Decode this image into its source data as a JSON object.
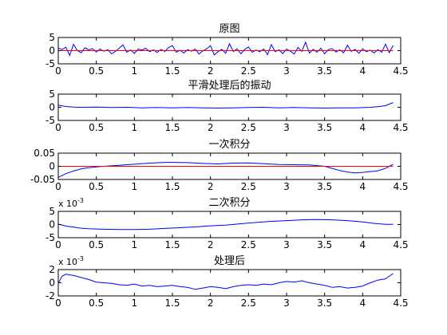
{
  "chart_data": [
    {
      "type": "line",
      "title": "原图",
      "xlabel": "",
      "ylabel": "",
      "xlim": [
        0,
        4.5
      ],
      "ylim": [
        -5,
        5
      ],
      "xticks": [
        "0",
        "0.5",
        "1",
        "1.5",
        "2",
        "2.5",
        "3",
        "3.5",
        "4",
        "4.5"
      ],
      "yticks": [
        "5",
        "0",
        "-5"
      ],
      "ytick_values": [
        5,
        0,
        -5
      ],
      "exponent_label": "",
      "grid": false,
      "series": [
        {
          "color": "#0000ff",
          "points": [
            [
              0,
              1.0
            ],
            [
              0.05,
              0.4
            ],
            [
              0.1,
              1.3
            ],
            [
              0.15,
              -1.8
            ],
            [
              0.2,
              2.4
            ],
            [
              0.25,
              0.1
            ],
            [
              0.3,
              -0.8
            ],
            [
              0.35,
              1.1
            ],
            [
              0.4,
              0.3
            ],
            [
              0.45,
              0.8
            ],
            [
              0.5,
              -0.5
            ],
            [
              0.55,
              0.6
            ],
            [
              0.6,
              -0.2
            ],
            [
              0.65,
              0.4
            ],
            [
              0.7,
              -1.2
            ],
            [
              0.75,
              -0.3
            ],
            [
              0.8,
              0.9
            ],
            [
              0.85,
              2.2
            ],
            [
              0.9,
              -0.6
            ],
            [
              0.95,
              0.3
            ],
            [
              1.0,
              -1.1
            ],
            [
              1.05,
              0.6
            ],
            [
              1.1,
              0.2
            ],
            [
              1.15,
              0.9
            ],
            [
              1.2,
              -0.4
            ],
            [
              1.25,
              0.3
            ],
            [
              1.3,
              -0.7
            ],
            [
              1.35,
              0.5
            ],
            [
              1.4,
              -0.3
            ],
            [
              1.45,
              1.2
            ],
            [
              1.5,
              1.9
            ],
            [
              1.55,
              -0.6
            ],
            [
              1.6,
              0.2
            ],
            [
              1.65,
              -0.9
            ],
            [
              1.7,
              0.4
            ],
            [
              1.75,
              -0.2
            ],
            [
              1.8,
              0.6
            ],
            [
              1.85,
              -1.3
            ],
            [
              1.9,
              -0.1
            ],
            [
              1.95,
              0.7
            ],
            [
              2.0,
              1.9
            ],
            [
              2.05,
              -1.6
            ],
            [
              2.1,
              -0.4
            ],
            [
              2.15,
              0.5
            ],
            [
              2.2,
              -1.0
            ],
            [
              2.25,
              2.6
            ],
            [
              2.3,
              -0.3
            ],
            [
              2.35,
              0.7
            ],
            [
              2.4,
              -1.2
            ],
            [
              2.45,
              0.5
            ],
            [
              2.5,
              1.4
            ],
            [
              2.55,
              -0.6
            ],
            [
              2.6,
              0.2
            ],
            [
              2.65,
              -0.4
            ],
            [
              2.7,
              0.6
            ],
            [
              2.75,
              -1.5
            ],
            [
              2.8,
              2.3
            ],
            [
              2.85,
              -0.4
            ],
            [
              2.9,
              0.3
            ],
            [
              2.95,
              -1.1
            ],
            [
              3.0,
              0.6
            ],
            [
              3.05,
              -0.2
            ],
            [
              3.1,
              -1.3
            ],
            [
              3.15,
              1.2
            ],
            [
              3.2,
              -0.3
            ],
            [
              3.25,
              3.2
            ],
            [
              3.3,
              -0.9
            ],
            [
              3.35,
              0.5
            ],
            [
              3.4,
              -0.6
            ],
            [
              3.45,
              0.9
            ],
            [
              3.5,
              -1.2
            ],
            [
              3.55,
              0.4
            ],
            [
              3.6,
              0.8
            ],
            [
              3.65,
              -0.5
            ],
            [
              3.7,
              0.3
            ],
            [
              3.75,
              -0.8
            ],
            [
              3.8,
              2.1
            ],
            [
              3.85,
              -0.3
            ],
            [
              3.9,
              0.5
            ],
            [
              3.95,
              -1.0
            ],
            [
              4.0,
              0.7
            ],
            [
              4.05,
              -0.4
            ],
            [
              4.1,
              0.2
            ],
            [
              4.15,
              -0.9
            ],
            [
              4.2,
              0.4
            ],
            [
              4.25,
              -0.6
            ],
            [
              4.3,
              2.5
            ],
            [
              4.35,
              -0.8
            ],
            [
              4.4,
              2.0
            ]
          ]
        },
        {
          "color": "#ff0000",
          "points": [
            [
              0,
              0
            ],
            [
              4.4,
              0
            ]
          ]
        }
      ]
    },
    {
      "type": "line",
      "title": "平滑处理后的振动",
      "xlabel": "",
      "ylabel": "",
      "xlim": [
        0,
        4.5
      ],
      "ylim": [
        -5,
        5
      ],
      "xticks": [
        "0",
        "0.5",
        "1",
        "1.5",
        "2",
        "2.5",
        "3",
        "3.5",
        "4",
        "4.5"
      ],
      "yticks": [
        "5",
        "0",
        "-5"
      ],
      "ytick_values": [
        5,
        0,
        -5
      ],
      "exponent_label": "",
      "grid": false,
      "series": [
        {
          "color": "#0000ff",
          "points": [
            [
              0,
              0.8
            ],
            [
              0.1,
              0.3
            ],
            [
              0.2,
              0.1
            ],
            [
              0.3,
              0.0
            ],
            [
              0.5,
              0.1
            ],
            [
              0.7,
              -0.1
            ],
            [
              0.9,
              0.0
            ],
            [
              1.1,
              -0.2
            ],
            [
              1.3,
              -0.1
            ],
            [
              1.5,
              -0.2
            ],
            [
              1.7,
              -0.1
            ],
            [
              1.9,
              -0.2
            ],
            [
              2.1,
              -0.3
            ],
            [
              2.3,
              -0.2
            ],
            [
              2.5,
              -0.1
            ],
            [
              2.7,
              0.0
            ],
            [
              2.9,
              -0.2
            ],
            [
              3.1,
              -0.1
            ],
            [
              3.3,
              -0.2
            ],
            [
              3.5,
              -0.3
            ],
            [
              3.7,
              -0.2
            ],
            [
              3.9,
              -0.2
            ],
            [
              4.1,
              0.0
            ],
            [
              4.2,
              0.2
            ],
            [
              4.3,
              0.6
            ],
            [
              4.4,
              1.8
            ]
          ]
        }
      ]
    },
    {
      "type": "line",
      "title": "一次积分",
      "xlabel": "",
      "ylabel": "",
      "xlim": [
        0,
        4.5
      ],
      "ylim": [
        -0.05,
        0.05
      ],
      "xticks": [
        "0",
        "0.5",
        "1",
        "1.5",
        "2",
        "2.5",
        "3",
        "3.5",
        "4",
        "4.5"
      ],
      "yticks": [
        "0.05",
        "0",
        "-0.05"
      ],
      "ytick_values": [
        0.05,
        0,
        -0.05
      ],
      "exponent_label": "",
      "grid": false,
      "series": [
        {
          "color": "#0000ff",
          "points": [
            [
              0,
              -0.042
            ],
            [
              0.1,
              -0.028
            ],
            [
              0.2,
              -0.018
            ],
            [
              0.3,
              -0.01
            ],
            [
              0.4,
              -0.005
            ],
            [
              0.5,
              -0.002
            ],
            [
              0.6,
              0.0
            ],
            [
              0.8,
              0.004
            ],
            [
              1.0,
              0.008
            ],
            [
              1.2,
              0.012
            ],
            [
              1.4,
              0.015
            ],
            [
              1.5,
              0.015
            ],
            [
              1.7,
              0.014
            ],
            [
              1.9,
              0.011
            ],
            [
              2.1,
              0.009
            ],
            [
              2.3,
              0.012
            ],
            [
              2.5,
              0.013
            ],
            [
              2.7,
              0.01
            ],
            [
              2.9,
              0.007
            ],
            [
              3.1,
              0.006
            ],
            [
              3.3,
              0.005
            ],
            [
              3.5,
              0.0
            ],
            [
              3.6,
              -0.008
            ],
            [
              3.7,
              -0.016
            ],
            [
              3.8,
              -0.022
            ],
            [
              3.9,
              -0.025
            ],
            [
              4.0,
              -0.023
            ],
            [
              4.1,
              -0.02
            ],
            [
              4.2,
              -0.017
            ],
            [
              4.3,
              -0.008
            ],
            [
              4.4,
              0.008
            ]
          ]
        },
        {
          "color": "#ff0000",
          "points": [
            [
              0,
              0
            ],
            [
              4.4,
              0
            ]
          ]
        }
      ]
    },
    {
      "type": "line",
      "title": "二次积分",
      "xlabel": "",
      "ylabel": "",
      "xlim": [
        0,
        4.5
      ],
      "ylim": [
        -5,
        5
      ],
      "xticks": [
        "0",
        "0.5",
        "1",
        "1.5",
        "2",
        "2.5",
        "3",
        "3.5",
        "4",
        "4.5"
      ],
      "yticks": [
        "5",
        "0",
        "-5"
      ],
      "ytick_values": [
        5,
        0,
        -5
      ],
      "exponent_label": "x 10-3",
      "exponent_base": "x 10",
      "exponent_power": "-3",
      "grid": false,
      "series": [
        {
          "color": "#0000ff",
          "points": [
            [
              0,
              0.2
            ],
            [
              0.1,
              -0.6
            ],
            [
              0.2,
              -1.0
            ],
            [
              0.3,
              -1.4
            ],
            [
              0.4,
              -1.6
            ],
            [
              0.6,
              -1.8
            ],
            [
              0.8,
              -1.9
            ],
            [
              1.0,
              -1.9
            ],
            [
              1.2,
              -1.8
            ],
            [
              1.4,
              -1.5
            ],
            [
              1.6,
              -1.2
            ],
            [
              1.8,
              -0.9
            ],
            [
              2.0,
              -0.5
            ],
            [
              2.2,
              -0.2
            ],
            [
              2.4,
              0.3
            ],
            [
              2.6,
              0.8
            ],
            [
              2.8,
              1.2
            ],
            [
              3.0,
              1.5
            ],
            [
              3.2,
              1.8
            ],
            [
              3.4,
              1.9
            ],
            [
              3.6,
              1.8
            ],
            [
              3.8,
              1.5
            ],
            [
              4.0,
              1.0
            ],
            [
              4.1,
              0.6
            ],
            [
              4.2,
              0.3
            ],
            [
              4.3,
              0.1
            ],
            [
              4.4,
              0.1
            ]
          ]
        }
      ]
    },
    {
      "type": "line",
      "title": "处理后",
      "xlabel": "",
      "ylabel": "",
      "xlim": [
        0,
        4.5
      ],
      "ylim": [
        -2,
        2
      ],
      "xticks": [
        "0",
        "0.5",
        "1",
        "1.5",
        "2",
        "2.5",
        "3",
        "3.5",
        "4",
        "4.5"
      ],
      "yticks": [
        "2",
        "0",
        "-2"
      ],
      "ytick_values": [
        2,
        0,
        -2
      ],
      "exponent_label": "x 10-3",
      "exponent_base": "x 10",
      "exponent_power": "-3",
      "grid": false,
      "series": [
        {
          "color": "#0000ff",
          "points": [
            [
              0,
              -0.1
            ],
            [
              0.05,
              1.0
            ],
            [
              0.1,
              1.3
            ],
            [
              0.2,
              1.1
            ],
            [
              0.3,
              0.8
            ],
            [
              0.4,
              0.5
            ],
            [
              0.5,
              0.1
            ],
            [
              0.6,
              0.0
            ],
            [
              0.7,
              -0.1
            ],
            [
              0.8,
              -0.3
            ],
            [
              0.9,
              -0.4
            ],
            [
              1.0,
              -0.2
            ],
            [
              1.1,
              -0.5
            ],
            [
              1.2,
              -0.4
            ],
            [
              1.3,
              -0.6
            ],
            [
              1.4,
              -0.5
            ],
            [
              1.5,
              -0.4
            ],
            [
              1.6,
              -0.6
            ],
            [
              1.7,
              -0.7
            ],
            [
              1.8,
              -1.0
            ],
            [
              1.9,
              -0.8
            ],
            [
              2.0,
              -0.6
            ],
            [
              2.1,
              -0.7
            ],
            [
              2.2,
              -0.9
            ],
            [
              2.3,
              -0.6
            ],
            [
              2.4,
              -0.4
            ],
            [
              2.5,
              -0.3
            ],
            [
              2.6,
              -0.4
            ],
            [
              2.7,
              -0.2
            ],
            [
              2.8,
              -0.3
            ],
            [
              2.9,
              0.0
            ],
            [
              3.0,
              0.2
            ],
            [
              3.1,
              0.1
            ],
            [
              3.2,
              0.3
            ],
            [
              3.3,
              0.0
            ],
            [
              3.4,
              -0.2
            ],
            [
              3.5,
              -0.4
            ],
            [
              3.6,
              -0.7
            ],
            [
              3.7,
              -0.6
            ],
            [
              3.8,
              -0.8
            ],
            [
              3.9,
              -0.7
            ],
            [
              4.0,
              -0.5
            ],
            [
              4.1,
              0.0
            ],
            [
              4.2,
              0.4
            ],
            [
              4.3,
              0.6
            ],
            [
              4.4,
              1.4
            ]
          ]
        }
      ]
    }
  ]
}
